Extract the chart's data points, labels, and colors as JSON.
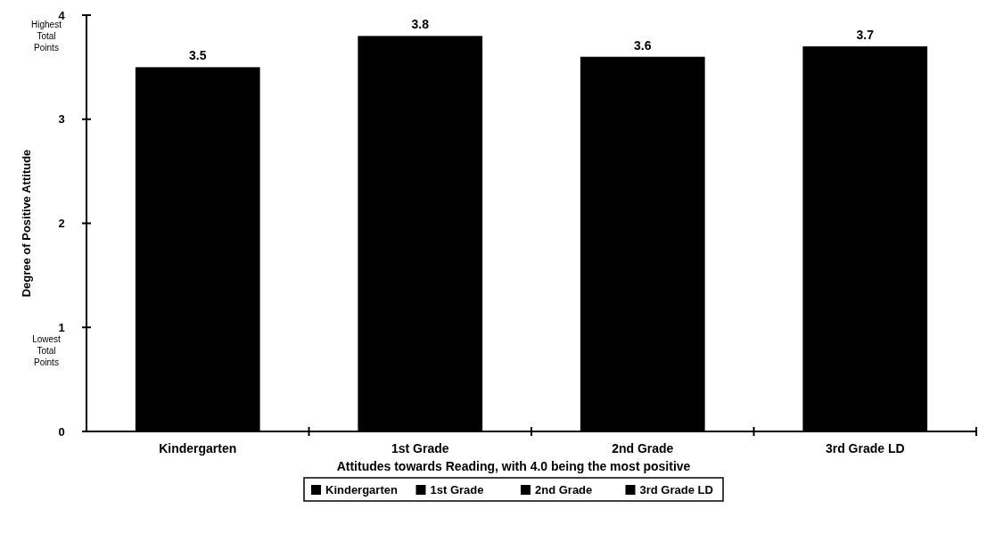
{
  "chart_data": {
    "type": "bar",
    "stacked": true,
    "categories": [
      "Kindergarten",
      "1st Grade",
      "2nd Grade",
      "3rd Grade LD"
    ],
    "series": [
      {
        "name": "Kindergarten",
        "color": "#000000",
        "values": [
          3.5,
          null,
          null,
          null
        ]
      },
      {
        "name": "1st Grade",
        "color": "#000000",
        "values": [
          null,
          3.8,
          null,
          null
        ]
      },
      {
        "name": "2nd Grade",
        "color": "#000000",
        "values": [
          null,
          null,
          3.6,
          null
        ]
      },
      {
        "name": "3rd Grade LD",
        "color": "#000000",
        "values": [
          null,
          null,
          null,
          3.7
        ]
      }
    ],
    "ylim": [
      0,
      4
    ],
    "yticks": [
      0,
      1,
      2,
      3,
      4
    ],
    "xlabel": "Attitudes towards Reading, with 4.0 being the most positive",
    "ylabel": "Degree of Positive Attitude",
    "annotations": [
      "Highest Total Points",
      "Lowest Total Points"
    ],
    "data_labels": true,
    "legend": "bottom",
    "grid": false
  }
}
